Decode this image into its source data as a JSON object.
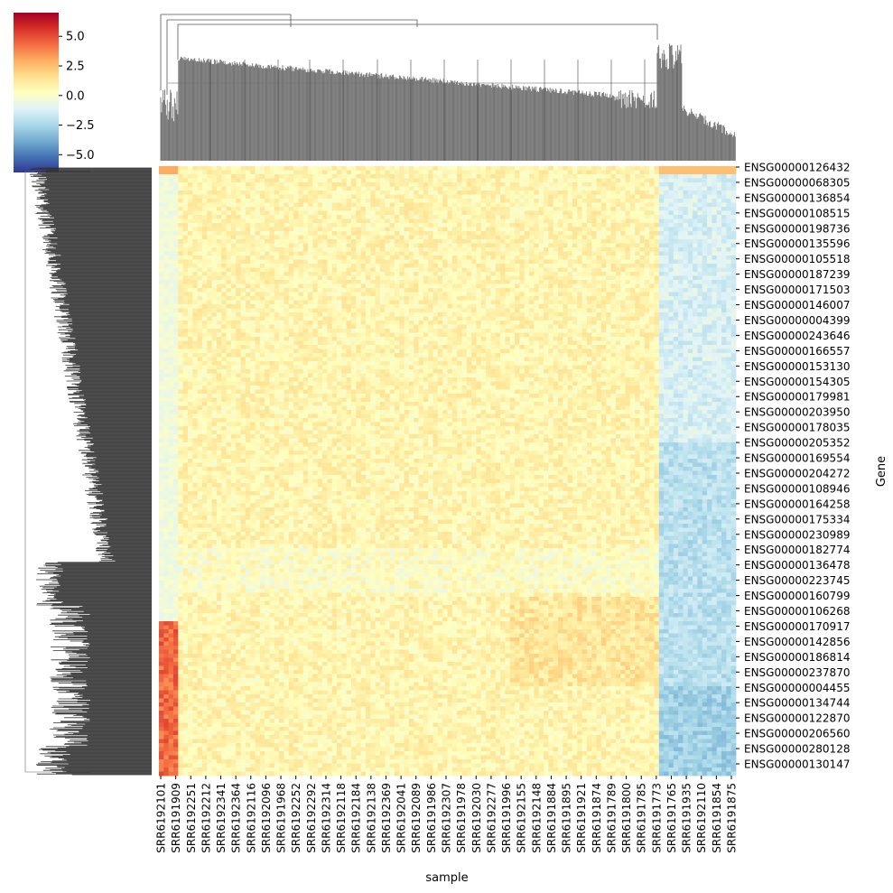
{
  "chart_data": {
    "type": "heatmap",
    "title": "",
    "xlabel": "sample",
    "ylabel": "Gene",
    "colormap": "RdYlBu_r",
    "colors": {
      "low": "#313695",
      "mid": "#ffffbf",
      "high": "#a50026",
      "dendrogram_col": "#707070",
      "dendrogram_row": "#333333"
    },
    "colorbar": {
      "vmin": -6.5,
      "vmax": 7.0,
      "ticks": [
        5.0,
        2.5,
        0.0,
        -2.5,
        -5.0
      ],
      "tick_labels": [
        "5.0",
        "2.5",
        "0.0",
        "−2.5",
        "−5.0"
      ]
    },
    "x_tick_labels": [
      "SRR6192101",
      "SRR6191909",
      "SRR6192251",
      "SRR6192212",
      "SRR6192341",
      "SRR6192364",
      "SRR6192116",
      "SRR6192096",
      "SRR6191968",
      "SRR6192252",
      "SRR6192292",
      "SRR6192314",
      "SRR6192118",
      "SRR6192184",
      "SRR6192138",
      "SRR6192369",
      "SRR6192041",
      "SRR6192089",
      "SRR6191986",
      "SRR6192307",
      "SRR6191978",
      "SRR6192030",
      "SRR6192277",
      "SRR6191996",
      "SRR6192155",
      "SRR6192148",
      "SRR6191884",
      "SRR6191895",
      "SRR6191921",
      "SRR6191874",
      "SRR6191789",
      "SRR6191800",
      "SRR6191785",
      "SRR6191773",
      "SRR6191765",
      "SRR6191935",
      "SRR6192110",
      "SRR6191854",
      "SRR6191875"
    ],
    "y_tick_labels": [
      "ENSG00000126432",
      "ENSG00000068305",
      "ENSG00000136854",
      "ENSG00000108515",
      "ENSG00000198736",
      "ENSG00000135596",
      "ENSG00000105518",
      "ENSG00000187239",
      "ENSG00000171503",
      "ENSG00000146007",
      "ENSG00000004399",
      "ENSG00000243646",
      "ENSG00000166557",
      "ENSG00000153130",
      "ENSG00000154305",
      "ENSG00000179981",
      "ENSG00000203950",
      "ENSG00000178035",
      "ENSG00000205352",
      "ENSG00000169554",
      "ENSG00000204272",
      "ENSG00000108946",
      "ENSG00000164258",
      "ENSG00000175334",
      "ENSG00000230989",
      "ENSG00000182774",
      "ENSG00000136478",
      "ENSG00000223745",
      "ENSG00000160799",
      "ENSG00000106268",
      "ENSG00000170917",
      "ENSG00000142856",
      "ENSG00000186814",
      "ENSG00000237870",
      "ENSG00000004455",
      "ENSG00000134744",
      "ENSG00000122870",
      "ENSG00000206560",
      "ENSG00000280128",
      "ENSG00000130147"
    ]
  }
}
